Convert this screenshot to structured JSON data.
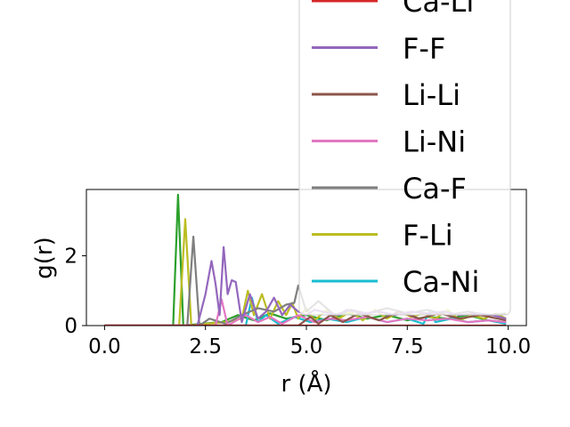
{
  "chart_data": {
    "type": "line",
    "xlabel": "r (Å)",
    "ylabel": "g(r)",
    "xlim": [
      -0.45,
      10.45
    ],
    "ylim": [
      0,
      3.9
    ],
    "xticks": [
      0.0,
      2.5,
      5.0,
      7.5,
      10.0
    ],
    "xtick_labels": [
      "0.0",
      "2.5",
      "5.0",
      "7.5",
      "10.0"
    ],
    "yticks": [
      0,
      2
    ],
    "ytick_labels": [
      "0",
      "2"
    ],
    "grid": false,
    "legend_position": "upper-right, extending beyond the top of the axes",
    "series": [
      {
        "name": "Ca-Li",
        "color": "#d62728",
        "x": [
          0,
          9.95
        ],
        "y": [
          0,
          0
        ]
      },
      {
        "name": "F-F",
        "color": "#9467bd",
        "x": [
          0,
          2.3,
          2.5,
          2.65,
          2.75,
          2.85,
          2.95,
          3.05,
          3.15,
          3.25,
          3.4,
          3.6,
          3.8,
          4.0,
          4.2,
          4.4,
          4.6,
          4.8,
          5.0,
          5.2,
          5.4,
          5.6,
          5.8,
          6.0,
          6.4,
          6.8,
          7.2,
          7.6,
          8.0,
          8.4,
          8.8,
          9.2,
          9.6,
          9.95
        ],
        "y": [
          0,
          0,
          0.9,
          1.85,
          1.2,
          0.3,
          2.25,
          0.9,
          1.3,
          1.25,
          0.1,
          0.9,
          0.2,
          0.4,
          0.8,
          0.3,
          0.6,
          0.4,
          0.3,
          0.45,
          0.4,
          0.35,
          0.3,
          0.45,
          0.35,
          0.4,
          0.3,
          0.4,
          0.35,
          0.4,
          0.3,
          0.35,
          0.3,
          0.2
        ]
      },
      {
        "name": "Li-Li",
        "color": "#8c564b",
        "x": [
          0,
          4.8,
          5.1,
          5.3,
          5.6,
          5.9,
          6.3,
          6.8,
          7.3,
          7.8,
          8.3,
          8.8,
          9.3,
          9.95
        ],
        "y": [
          0,
          0,
          0.25,
          0.05,
          0.3,
          0.1,
          0.35,
          0.15,
          0.4,
          0.2,
          0.35,
          0.2,
          0.3,
          0.15
        ]
      },
      {
        "name": "Li-Ni",
        "color": "#e377c2",
        "x": [
          0,
          2.75,
          2.9,
          3.05,
          3.2,
          3.5,
          3.8,
          4.1,
          4.4,
          4.8,
          5.2,
          5.6,
          6.0,
          6.5,
          7.0,
          7.5,
          8.0,
          8.5,
          9.0,
          9.5,
          9.95
        ],
        "y": [
          0,
          0,
          0.75,
          0,
          0.1,
          0.3,
          0.1,
          0.25,
          0.05,
          0.3,
          0.1,
          0.2,
          0.15,
          0.25,
          0.1,
          0.2,
          0.15,
          0.2,
          0.1,
          0.15,
          0.1
        ]
      },
      {
        "name": "Ca-F",
        "color": "#7f7f7f",
        "x": [
          0,
          2.05,
          2.2,
          2.35,
          2.6,
          3.0,
          3.4,
          3.8,
          4.2,
          4.5,
          4.7,
          4.8,
          5.0,
          5.3,
          5.7,
          6.1,
          6.5,
          7.0,
          7.5,
          8.0,
          8.5,
          9.0,
          9.5,
          9.95
        ],
        "y": [
          0,
          0,
          2.55,
          0,
          0.2,
          0.05,
          0.3,
          0.5,
          0.4,
          0.6,
          0.65,
          1.15,
          0.4,
          0.7,
          0.3,
          0.45,
          0.35,
          0.5,
          0.35,
          0.45,
          0.3,
          0.4,
          0.3,
          0.35
        ]
      },
      {
        "name": "F-Li",
        "color": "#bcbd22",
        "x": [
          0,
          1.85,
          2.0,
          2.15,
          2.5,
          3.0,
          3.4,
          3.55,
          3.7,
          3.9,
          4.1,
          4.3,
          4.5,
          4.65,
          4.8,
          5.0,
          5.2,
          5.5,
          5.8,
          6.1,
          6.4,
          6.7,
          7.0,
          7.3,
          7.6,
          7.9,
          8.2,
          8.5,
          8.8,
          9.1,
          9.4,
          9.7,
          9.95
        ],
        "y": [
          0,
          0,
          3.05,
          0,
          0.05,
          0.1,
          0.2,
          1.0,
          0.3,
          0.9,
          0.2,
          0.7,
          0.3,
          0.65,
          0.2,
          0.5,
          0.15,
          0.45,
          0.2,
          0.4,
          0.15,
          0.45,
          0.2,
          0.4,
          0.25,
          0.35,
          0.2,
          0.45,
          0.15,
          0.3,
          0.2,
          0.35,
          0.2
        ]
      },
      {
        "name": "Ca-Ni",
        "color": "#17becf",
        "x": [
          0,
          3.5,
          3.65,
          3.8,
          4.0,
          4.3,
          4.7,
          5.1,
          5.5,
          6.0,
          6.5,
          7.0,
          7.5,
          7.9,
          8.05,
          8.2,
          8.6,
          9.0,
          9.5,
          9.95
        ],
        "y": [
          0,
          0,
          0.8,
          0.1,
          0.3,
          0.05,
          0.25,
          0.1,
          0.2,
          0.1,
          0.25,
          0.1,
          0.2,
          0.05,
          0.4,
          0.1,
          0.2,
          0.1,
          0.15,
          0.05
        ]
      },
      {
        "name": "",
        "color": "#2ca02c",
        "x": [
          0,
          1.7,
          1.82,
          1.95,
          2.4,
          2.9,
          3.3,
          3.7,
          4.1,
          4.5,
          5.0,
          5.5,
          6.0,
          6.5,
          7.0,
          7.5,
          8.0,
          8.5,
          9.0,
          9.5,
          9.95
        ],
        "y": [
          0,
          0,
          3.75,
          0,
          0.05,
          0.1,
          0.3,
          0.15,
          0.35,
          0.2,
          0.3,
          0.15,
          0.35,
          0.2,
          0.3,
          0.15,
          0.25,
          0.2,
          0.3,
          0.15,
          0.1
        ]
      }
    ]
  }
}
